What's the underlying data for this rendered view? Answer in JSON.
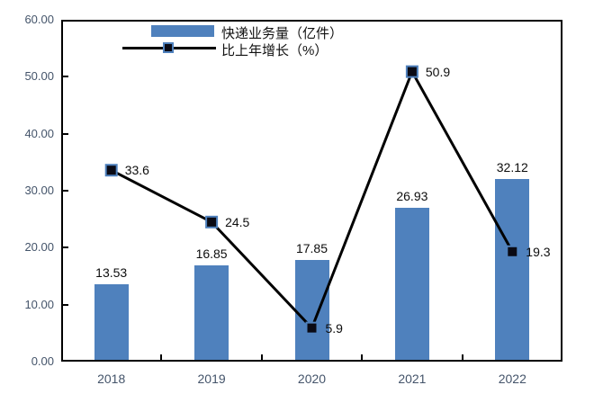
{
  "chart_data": {
    "type": "bar",
    "subtype": "combo-bar-line",
    "title": "",
    "xlabel": "",
    "ylabel": "",
    "categories": [
      "2018",
      "2019",
      "2020",
      "2021",
      "2022"
    ],
    "series": [
      {
        "name": "快递业务量（亿件）",
        "type": "bar",
        "values": [
          13.53,
          16.85,
          17.85,
          26.93,
          32.12
        ],
        "labels": [
          "13.53",
          "16.85",
          "17.85",
          "26.93",
          "32.12"
        ],
        "color": "#4f81bd"
      },
      {
        "name": "比上年增长（%）",
        "type": "line",
        "values": [
          33.6,
          24.5,
          5.9,
          50.9,
          19.3
        ],
        "labels": [
          "33.6",
          "24.5",
          "5.9",
          "50.9",
          "19.3"
        ],
        "color": "#000000",
        "marker_fill": "#0a0a14",
        "marker_border": "#4f81bd"
      }
    ],
    "ylim": [
      0,
      60
    ],
    "yticks": [
      "60.00",
      "50.00",
      "40.00",
      "30.00",
      "20.00",
      "10.00",
      "0.00"
    ],
    "grid": false,
    "legend_position": "top-center",
    "axis_label_color": "#44546a",
    "axis_line_color": "#000000"
  }
}
